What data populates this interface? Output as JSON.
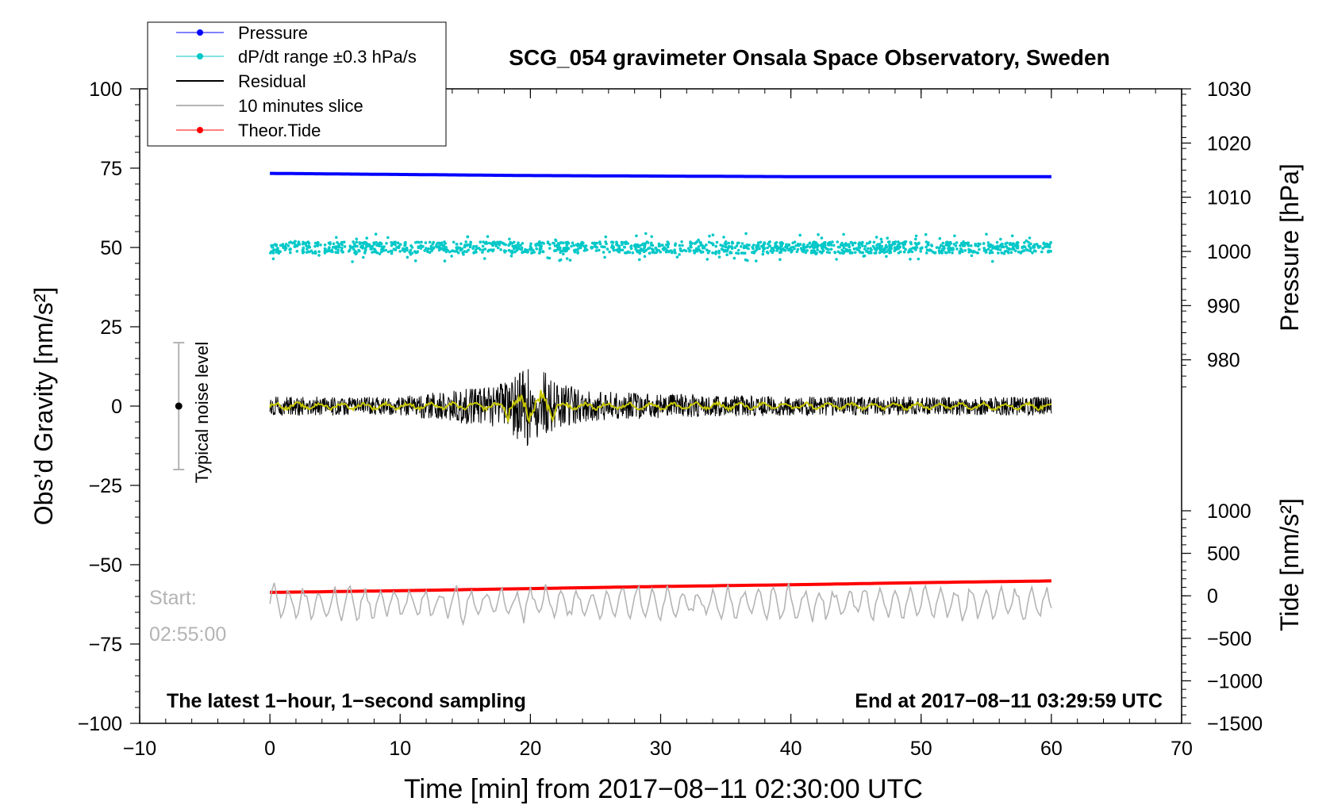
{
  "chart_data": {
    "type": "line",
    "title": "SCG_054 gravimeter Onsala Space Observatory, Sweden",
    "xlabel": "Time [min] from 2017−08−11 02:30:00 UTC",
    "ylabel_left": "Obs’d Gravity [nm/s²]",
    "ylabel_pressure": "Pressure [hPa]",
    "ylabel_tide": "Tide [nm/s²]",
    "xlim": [
      -10,
      70
    ],
    "ylim": [
      -100,
      100
    ],
    "pressure_lim": [
      970,
      1030
    ],
    "tide_lim": [
      -1500,
      1000
    ],
    "x_ticks": [
      "−10",
      "0",
      "10",
      "20",
      "30",
      "40",
      "50",
      "60",
      "70"
    ],
    "y_ticks": [
      "−100",
      "−75",
      "−50",
      "−25",
      "0",
      "25",
      "50",
      "75",
      "100"
    ],
    "pressure_ticks": [
      "980",
      "990",
      "1000",
      "1010",
      "1020",
      "1030"
    ],
    "tide_ticks": [
      "−1500",
      "−1000",
      "−500",
      "0",
      "500",
      "1000"
    ],
    "legend_placement": "top-left",
    "legend": [
      {
        "label": "Pressure",
        "color": "#0000ff",
        "style": "line-dot"
      },
      {
        "label": "dP/dt range ±0.3 hPa/s",
        "color": "#00c8c8",
        "style": "line-dot"
      },
      {
        "label": "Residual",
        "color": "#000000",
        "style": "line"
      },
      {
        "label": "10 minutes slice",
        "color": "#b4b4b4",
        "style": "line"
      },
      {
        "label": "Theor.Tide",
        "color": "#ff0000",
        "style": "line-dot"
      }
    ],
    "series": [
      {
        "name": "Pressure",
        "axis": "pressure",
        "x": [
          0,
          10,
          20,
          30,
          40,
          50,
          60
        ],
        "values": [
          1014.4,
          1014.2,
          1014.0,
          1013.9,
          1013.8,
          1013.8,
          1013.8
        ]
      },
      {
        "name": "dP/dt range ±0.3 hPa/s",
        "axis": "gravity",
        "x": [
          0,
          60
        ],
        "values": [
          50,
          50
        ],
        "spread": 3
      },
      {
        "name": "Residual",
        "axis": "gravity",
        "x": [
          0,
          10,
          18,
          19,
          20,
          20.5,
          21,
          22,
          25,
          30,
          40,
          50,
          60
        ],
        "values": [
          0,
          0,
          5,
          9,
          12,
          -10,
          11,
          5,
          2,
          1,
          0,
          0,
          0
        ]
      },
      {
        "name": "10 minutes slice",
        "axis": "gravity",
        "x": [
          0,
          60
        ],
        "values": [
          -62,
          -62
        ],
        "spread": 4
      },
      {
        "name": "Theor.Tide",
        "axis": "tide",
        "x": [
          0,
          10,
          20,
          30,
          40,
          50,
          60
        ],
        "values": [
          40,
          60,
          85,
          110,
          130,
          155,
          175
        ]
      }
    ],
    "noise_bar": {
      "label": "Typical noise level",
      "x": -7,
      "center": 0,
      "low": -20,
      "high": 20
    },
    "annotations": {
      "start_label": "Start:",
      "start_time": "02:55:00",
      "bottom_left": "The latest 1−hour, 1−second sampling",
      "bottom_right": "End at 2017−08−11 03:29:59 UTC"
    },
    "colors": {
      "pressure": "#0000ff",
      "dpdt": "#00c8c8",
      "residual": "#000000",
      "residual_smooth": "#c8c800",
      "slice": "#b4b4b4",
      "tide": "#ff0000"
    }
  }
}
